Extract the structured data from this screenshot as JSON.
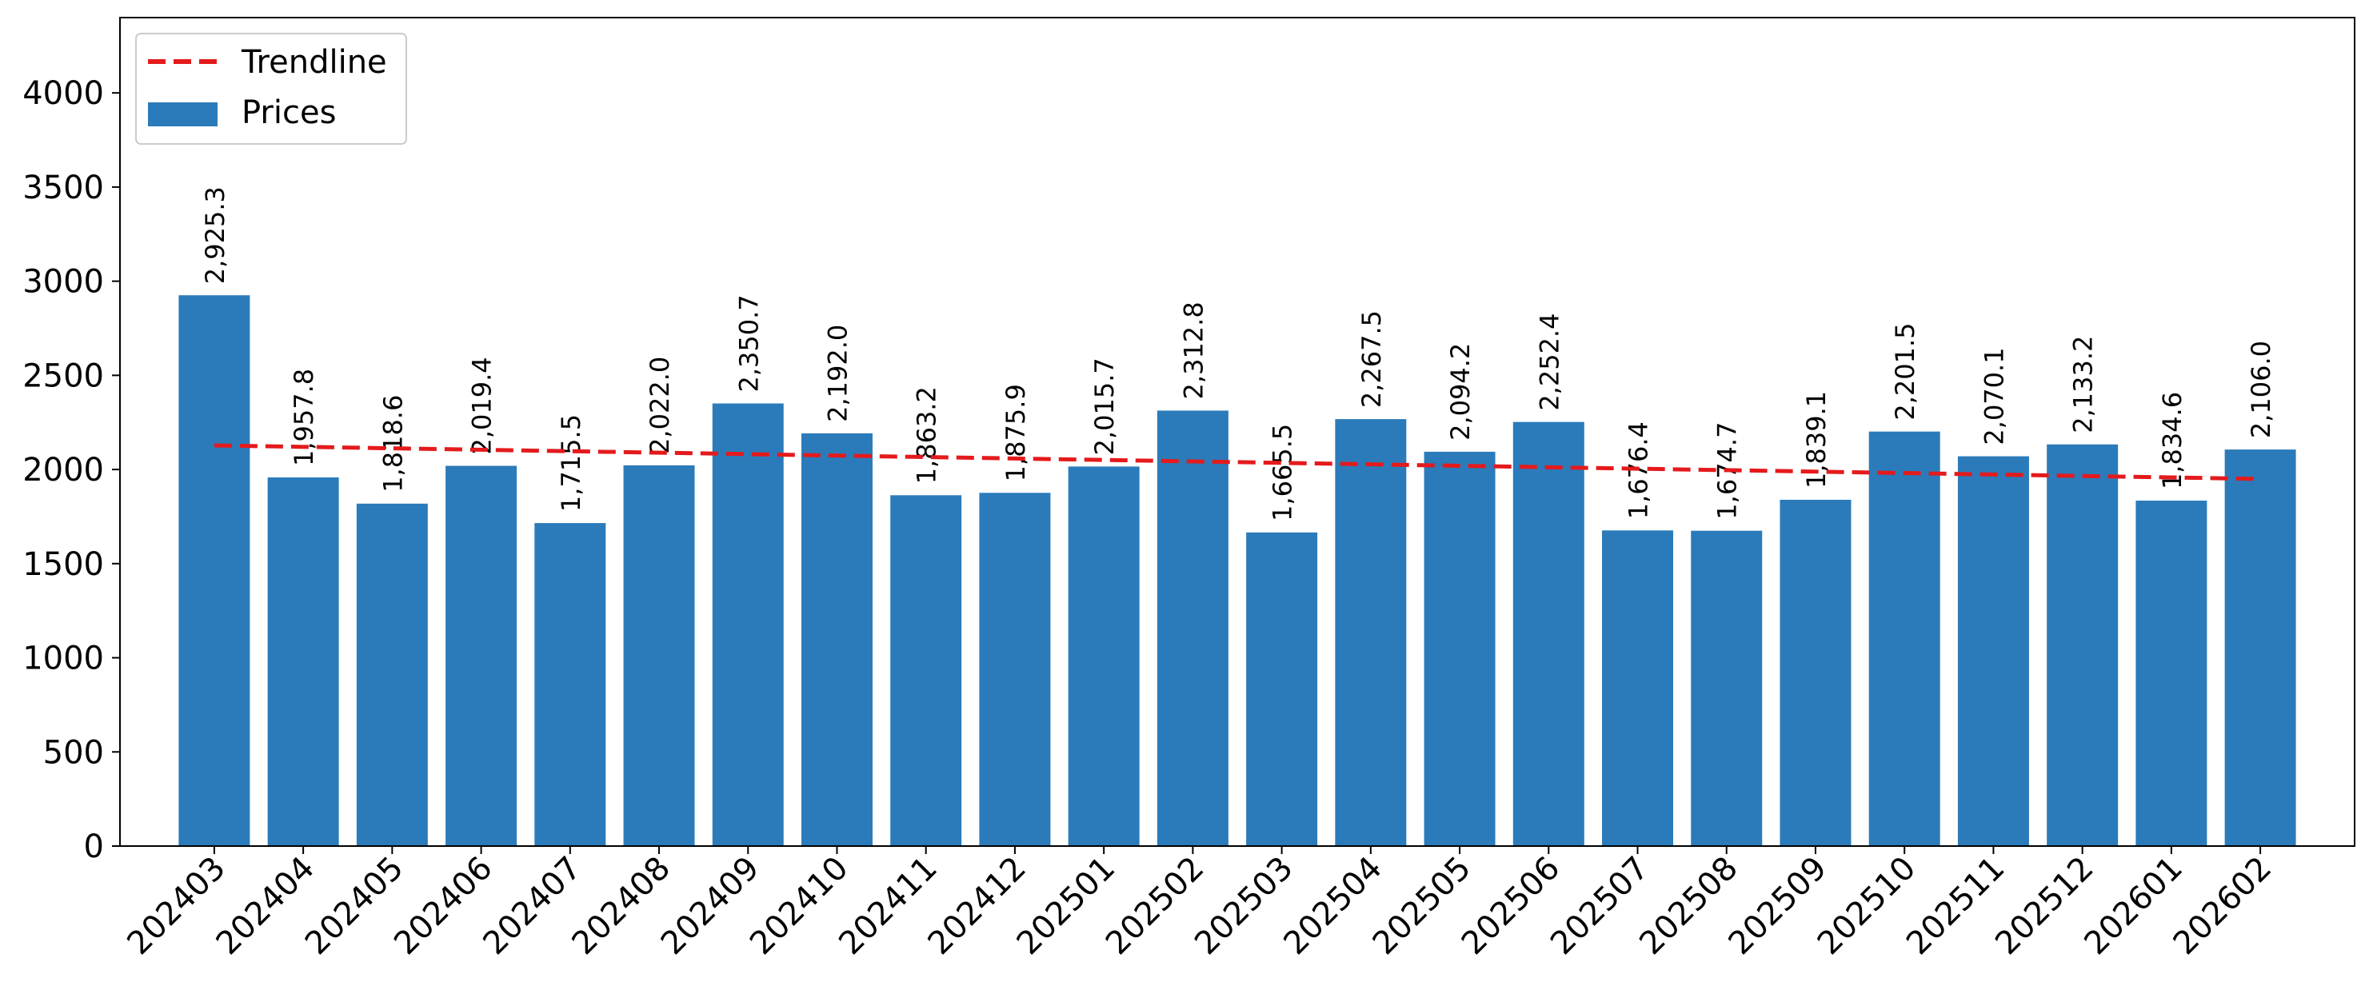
{
  "chart_data": {
    "type": "bar",
    "categories": [
      "202403",
      "202404",
      "202405",
      "202406",
      "202407",
      "202408",
      "202409",
      "202410",
      "202411",
      "202412",
      "202501",
      "202502",
      "202503",
      "202504",
      "202505",
      "202506",
      "202507",
      "202508",
      "202509",
      "202510",
      "202511",
      "202512",
      "202601",
      "202602"
    ],
    "series": [
      {
        "name": "Prices",
        "values": [
          2925.3,
          1957.8,
          1818.6,
          2019.4,
          1715.5,
          2022.0,
          2350.7,
          2192.0,
          1863.2,
          1875.9,
          2015.7,
          2312.8,
          1665.5,
          2267.5,
          2094.2,
          2252.4,
          1676.4,
          1674.7,
          1839.1,
          2201.5,
          2070.1,
          2133.2,
          1834.6,
          2106.0
        ],
        "value_labels": [
          "2,925.3",
          "1,957.8",
          "1,818.6",
          "2,019.4",
          "1,715.5",
          "2,022.0",
          "2,350.7",
          "2,192.0",
          "1,863.2",
          "1,875.9",
          "2,015.7",
          "2,312.8",
          "1,665.5",
          "2,267.5",
          "2,094.2",
          "2,252.4",
          "1,676.4",
          "1,674.7",
          "1,839.1",
          "2,201.5",
          "2,070.1",
          "2,133.2",
          "1,834.6",
          "2,106.0"
        ],
        "color": "#2b7bba"
      }
    ],
    "trendline": {
      "name": "Trendline",
      "start": 2128,
      "end": 1950,
      "color": "#e41a1c",
      "style": "dashed"
    },
    "y_ticks": [
      0,
      500,
      1000,
      1500,
      2000,
      2500,
      3000,
      3500,
      4000
    ],
    "ylim": [
      0,
      4400
    ],
    "title": "",
    "xlabel": "",
    "ylabel": "",
    "legend_position": "top-left",
    "grid": false
  }
}
